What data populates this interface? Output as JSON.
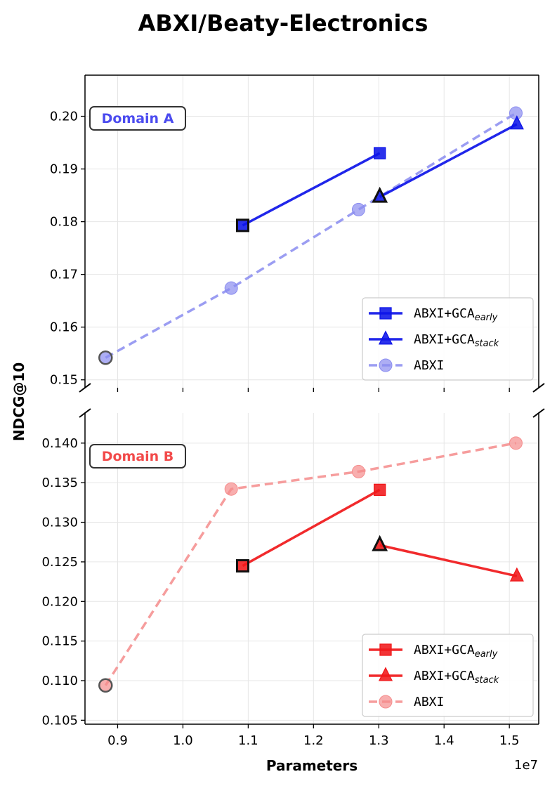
{
  "chart_data": {
    "type": "line",
    "title": "ABXI/Beaty-Electronics",
    "xlabel": "Parameters",
    "ylabel": "NDCG@10",
    "x_offset_label": "1e7",
    "xlim": [
      0.85,
      1.545
    ],
    "xticks": [
      0.9,
      1.0,
      1.1,
      1.2,
      1.3,
      1.4,
      1.5
    ],
    "xtick_labels": [
      "0.9",
      "1.0",
      "1.1",
      "1.2",
      "1.3",
      "1.4",
      "1.5"
    ],
    "grid": true,
    "broken_y_axis": true,
    "panels": [
      {
        "name": "top",
        "badge": "Domain A",
        "badge_color": "#4b4bef",
        "ylim": [
          0.1485,
          0.2078
        ],
        "yticks": [
          0.15,
          0.16,
          0.17,
          0.18,
          0.19,
          0.2
        ],
        "ytick_labels": [
          "0.15",
          "0.16",
          "0.17",
          "0.18",
          "0.19",
          "0.20"
        ],
        "legend_position": "lower-right",
        "series": [
          {
            "name": "ABXI+GCA",
            "subscript": "early",
            "color": "#0d14e8",
            "marker": "square",
            "style": "solid",
            "x": [
              1.0915,
              1.3015
            ],
            "y": [
              0.1793,
              0.193
            ],
            "edge_first": true
          },
          {
            "name": "ABXI+GCA",
            "subscript": "stack",
            "color": "#0d14e8",
            "marker": "triangle",
            "style": "solid",
            "x": [
              1.3015,
              1.5115
            ],
            "y": [
              0.1847,
              0.1985
            ],
            "edge_first": true
          },
          {
            "name": "ABXI",
            "subscript": "",
            "color": "#8a8cf0",
            "marker": "circle",
            "style": "dashed",
            "x": [
              0.8815,
              1.074,
              1.269,
              1.51
            ],
            "y": [
              0.1542,
              0.1674,
              0.1823,
              0.2006
            ],
            "edge_first": true
          }
        ]
      },
      {
        "name": "bottom",
        "badge": "Domain B",
        "badge_color": "#f24a4a",
        "ylim": [
          0.1045,
          0.1438
        ],
        "yticks": [
          0.105,
          0.11,
          0.115,
          0.12,
          0.125,
          0.13,
          0.135,
          0.14
        ],
        "ytick_labels": [
          "0.105",
          "0.110",
          "0.115",
          "0.120",
          "0.125",
          "0.130",
          "0.135",
          "0.140"
        ],
        "legend_position": "lower-right",
        "series": [
          {
            "name": "ABXI+GCA",
            "subscript": "early",
            "color": "#f0181a",
            "marker": "square",
            "style": "solid",
            "x": [
              1.0915,
              1.3015
            ],
            "y": [
              0.1245,
              0.1341
            ],
            "edge_first": true
          },
          {
            "name": "ABXI+GCA",
            "subscript": "stack",
            "color": "#f0181a",
            "marker": "triangle",
            "style": "solid",
            "x": [
              1.3015,
              1.5115
            ],
            "y": [
              0.1271,
              0.1232
            ],
            "edge_first": true
          },
          {
            "name": "ABXI",
            "subscript": "",
            "color": "#f58c8c",
            "marker": "circle",
            "style": "dashed",
            "x": [
              0.8815,
              1.074,
              1.269,
              1.51
            ],
            "y": [
              0.1094,
              0.1342,
              0.1364,
              0.14
            ],
            "edge_first": true
          }
        ]
      }
    ]
  }
}
